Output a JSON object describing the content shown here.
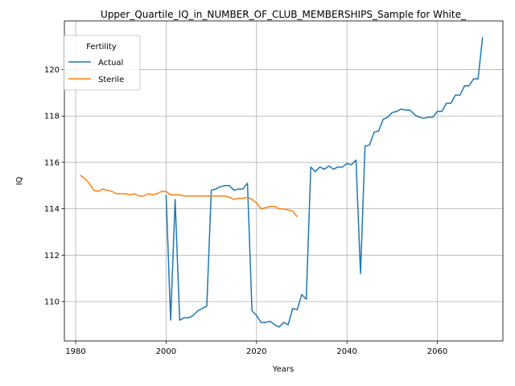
{
  "chart_data": {
    "type": "line",
    "title": "Upper_Quartile_IQ_in_NUMBER_OF_CLUB_MEMBERSHIPS_Sample for White_",
    "xlabel": "Years",
    "ylabel": "IQ",
    "xlim": [
      1977.5,
      2074.5
    ],
    "ylim": [
      108.3,
      122.1
    ],
    "xticks": [
      1980,
      2000,
      2020,
      2040,
      2060
    ],
    "yticks": [
      110,
      112,
      114,
      116,
      118,
      120
    ],
    "grid": true,
    "legend": {
      "title": "Fertility",
      "placement": "top-left"
    },
    "series": [
      {
        "name": "Actual",
        "color": "#1f77b4",
        "points": [
          [
            2000,
            114.6
          ],
          [
            2001,
            109.2
          ],
          [
            2002,
            114.4
          ],
          [
            2003,
            109.2
          ],
          [
            2004,
            109.3
          ],
          [
            2005,
            109.3
          ],
          [
            2006,
            109.4
          ],
          [
            2007,
            109.6
          ],
          [
            2008,
            109.7
          ],
          [
            2009,
            109.8
          ],
          [
            2010,
            114.8
          ],
          [
            2011,
            114.85
          ],
          [
            2012,
            114.95
          ],
          [
            2013,
            115.0
          ],
          [
            2014,
            115.0
          ],
          [
            2015,
            114.8
          ],
          [
            2016,
            114.85
          ],
          [
            2017,
            114.85
          ],
          [
            2018,
            115.1
          ],
          [
            2019,
            109.6
          ],
          [
            2020,
            109.4
          ],
          [
            2021,
            109.1
          ],
          [
            2022,
            109.1
          ],
          [
            2023,
            109.15
          ],
          [
            2024,
            109.0
          ],
          [
            2025,
            108.9
          ],
          [
            2026,
            109.1
          ],
          [
            2027,
            109.0
          ],
          [
            2028,
            109.7
          ],
          [
            2029,
            109.65
          ],
          [
            2030,
            110.3
          ],
          [
            2031,
            110.1
          ],
          [
            2032,
            115.8
          ],
          [
            2033,
            115.6
          ],
          [
            2034,
            115.8
          ],
          [
            2035,
            115.7
          ],
          [
            2036,
            115.85
          ],
          [
            2037,
            115.7
          ],
          [
            2038,
            115.8
          ],
          [
            2039,
            115.8
          ],
          [
            2040,
            115.95
          ],
          [
            2041,
            115.9
          ],
          [
            2042,
            116.1
          ],
          [
            2043,
            111.2
          ],
          [
            2044,
            116.7
          ],
          [
            2045,
            116.75
          ],
          [
            2046,
            117.3
          ],
          [
            2047,
            117.35
          ],
          [
            2048,
            117.85
          ],
          [
            2049,
            117.95
          ],
          [
            2050,
            118.15
          ],
          [
            2051,
            118.2
          ],
          [
            2052,
            118.3
          ],
          [
            2053,
            118.25
          ],
          [
            2054,
            118.25
          ],
          [
            2055,
            118.05
          ],
          [
            2056,
            117.95
          ],
          [
            2057,
            117.9
          ],
          [
            2058,
            117.95
          ],
          [
            2059,
            117.95
          ],
          [
            2060,
            118.2
          ],
          [
            2061,
            118.2
          ],
          [
            2062,
            118.55
          ],
          [
            2063,
            118.55
          ],
          [
            2064,
            118.9
          ],
          [
            2065,
            118.9
          ],
          [
            2066,
            119.3
          ],
          [
            2067,
            119.3
          ],
          [
            2068,
            119.6
          ],
          [
            2069,
            119.6
          ],
          [
            2070,
            121.4
          ]
        ]
      },
      {
        "name": "Sterile",
        "color": "#ff7f0e",
        "points": [
          [
            1981,
            115.45
          ],
          [
            1982,
            115.3
          ],
          [
            1983,
            115.1
          ],
          [
            1984,
            114.8
          ],
          [
            1985,
            114.75
          ],
          [
            1986,
            114.85
          ],
          [
            1987,
            114.8
          ],
          [
            1988,
            114.75
          ],
          [
            1989,
            114.65
          ],
          [
            1990,
            114.65
          ],
          [
            1991,
            114.65
          ],
          [
            1992,
            114.6
          ],
          [
            1993,
            114.65
          ],
          [
            1994,
            114.55
          ],
          [
            1995,
            114.55
          ],
          [
            1996,
            114.65
          ],
          [
            1997,
            114.6
          ],
          [
            1998,
            114.65
          ],
          [
            1999,
            114.75
          ],
          [
            2000,
            114.75
          ],
          [
            2001,
            114.6
          ],
          [
            2002,
            114.6
          ],
          [
            2003,
            114.6
          ],
          [
            2004,
            114.55
          ],
          [
            2005,
            114.55
          ],
          [
            2006,
            114.55
          ],
          [
            2007,
            114.55
          ],
          [
            2008,
            114.55
          ],
          [
            2009,
            114.55
          ],
          [
            2010,
            114.55
          ],
          [
            2011,
            114.55
          ],
          [
            2012,
            114.55
          ],
          [
            2013,
            114.55
          ],
          [
            2014,
            114.5
          ],
          [
            2015,
            114.4
          ],
          [
            2016,
            114.45
          ],
          [
            2017,
            114.45
          ],
          [
            2018,
            114.5
          ],
          [
            2019,
            114.4
          ],
          [
            2020,
            114.25
          ],
          [
            2021,
            114.0
          ],
          [
            2022,
            114.05
          ],
          [
            2023,
            114.1
          ],
          [
            2024,
            114.1
          ],
          [
            2025,
            114.0
          ],
          [
            2026,
            114.0
          ],
          [
            2027,
            113.95
          ],
          [
            2028,
            113.9
          ],
          [
            2029,
            113.65
          ]
        ]
      }
    ]
  }
}
